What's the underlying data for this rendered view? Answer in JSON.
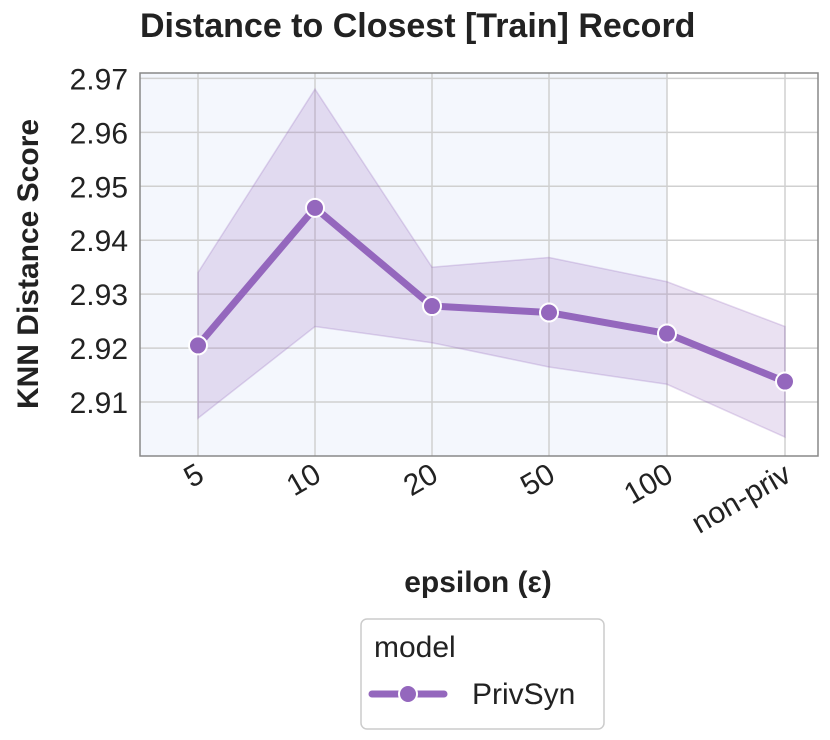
{
  "chart_data": {
    "type": "line",
    "title": "Distance to Closest [Train] Record",
    "xlabel": "epsilon (ε)",
    "ylabel": "KNN Distance Score",
    "categories": [
      "5",
      "10",
      "20",
      "50",
      "100",
      "non-priv"
    ],
    "yticks": [
      2.91,
      2.92,
      2.93,
      2.94,
      2.95,
      2.96,
      2.97
    ],
    "ylim": [
      2.9,
      2.971
    ],
    "grid": true,
    "legend_position": "bottom-center",
    "legend_title": "model",
    "background_bands": [
      {
        "from_category": "5",
        "to_category": "100",
        "color": "#f4f7fd"
      }
    ],
    "series": [
      {
        "name": "PrivSyn",
        "color": "#9467bd",
        "values": [
          2.9205,
          2.946,
          2.9278,
          2.9266,
          2.9227,
          2.9138
        ],
        "ci_lower": [
          2.907,
          2.924,
          2.921,
          2.9165,
          2.9133,
          2.9035
        ],
        "ci_upper": [
          2.934,
          2.968,
          2.935,
          2.9368,
          2.9323,
          2.924
        ]
      }
    ]
  }
}
